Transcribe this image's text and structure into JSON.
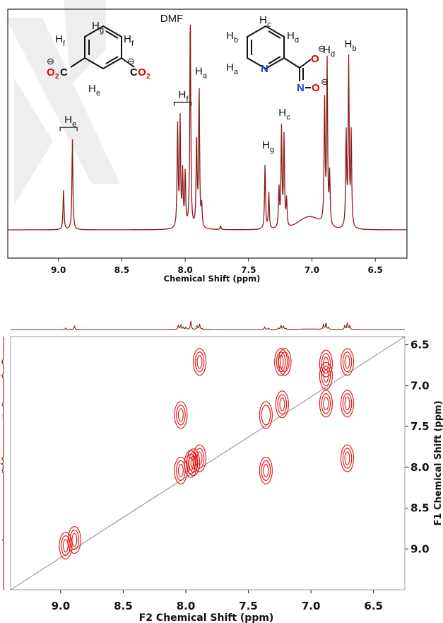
{
  "chart_data": [
    {
      "type": "line",
      "xlabel": "Chemical Shift (ppm)",
      "ylabel": "",
      "xlim": [
        9.4,
        6.25
      ],
      "x_ticks": [
        "9.0",
        "8.5",
        "8.0",
        "7.5",
        "7.0",
        "6.5"
      ],
      "line_color": "#8b1a1a",
      "solvent_label": "DMF",
      "solvent_peak_ppm": 7.96,
      "peaks": [
        {
          "ppm": 8.96,
          "height": 0.22
        },
        {
          "ppm": 8.89,
          "height": 0.5
        },
        {
          "ppm": 8.06,
          "height": 0.58
        },
        {
          "ppm": 8.04,
          "height": 0.6
        },
        {
          "ppm": 8.02,
          "height": 0.3
        },
        {
          "ppm": 8.0,
          "height": 0.3
        },
        {
          "ppm": 7.96,
          "height": 1.2
        },
        {
          "ppm": 7.91,
          "height": 0.5
        },
        {
          "ppm": 7.89,
          "height": 0.78
        },
        {
          "ppm": 7.87,
          "height": 0.12
        },
        {
          "ppm": 7.72,
          "height": 0.02
        },
        {
          "ppm": 7.37,
          "height": 0.36
        },
        {
          "ppm": 7.34,
          "height": 0.2
        },
        {
          "ppm": 7.26,
          "height": 0.22
        },
        {
          "ppm": 7.24,
          "height": 0.55
        },
        {
          "ppm": 7.22,
          "height": 0.5
        },
        {
          "ppm": 7.2,
          "height": 0.15
        },
        {
          "ppm": 6.9,
          "height": 0.68
        },
        {
          "ppm": 6.88,
          "height": 0.9
        },
        {
          "ppm": 6.86,
          "height": 0.28
        },
        {
          "ppm": 6.73,
          "height": 0.52
        },
        {
          "ppm": 6.71,
          "height": 0.92
        },
        {
          "ppm": 6.69,
          "height": 0.52
        }
      ],
      "broad_peak": {
        "ppm": 7.02,
        "height": 0.07,
        "width": 0.12
      },
      "annotations": [
        {
          "text": "H",
          "sub": "e",
          "ppm": 8.92,
          "level": 0.56,
          "bracket": true
        },
        {
          "text": "H",
          "sub": "f",
          "ppm": 8.02,
          "level": 0.7,
          "bracket": true
        },
        {
          "text": "H",
          "sub": "a",
          "ppm": 7.89,
          "level": 0.83,
          "bracket": false
        },
        {
          "text": "H",
          "sub": "g",
          "ppm": 7.36,
          "level": 0.42,
          "bracket": false
        },
        {
          "text": "H",
          "sub": "c",
          "ppm": 7.23,
          "level": 0.6,
          "bracket": false
        },
        {
          "text": "H",
          "sub": "d",
          "ppm": 6.88,
          "level": 0.95,
          "bracket": false
        },
        {
          "text": "H",
          "sub": "b",
          "ppm": 6.71,
          "level": 0.98,
          "bracket": false
        }
      ]
    },
    {
      "type": "heatmap",
      "xlabel": "F2 Chemical Shift (ppm)",
      "ylabel": "F1 Chemical Shift (ppm)",
      "xlim": [
        9.4,
        6.25
      ],
      "ylim": [
        6.4,
        9.5
      ],
      "x_ticks": [
        "9.0",
        "8.5",
        "8.0",
        "7.5",
        "7.0",
        "6.5"
      ],
      "y_ticks": [
        "6.5",
        "7.0",
        "7.5",
        "8.0",
        "8.5",
        "9.0"
      ],
      "contour_color": "#e01010",
      "diagonal": true,
      "cross_peaks": [
        {
          "f2": 7.89,
          "f1": 6.71,
          "rings": 3
        },
        {
          "f2": 7.24,
          "f1": 6.71,
          "rings": 3
        },
        {
          "f2": 7.21,
          "f1": 6.71,
          "rings": 2
        },
        {
          "f2": 6.88,
          "f1": 6.73,
          "rings": 3
        },
        {
          "f2": 6.71,
          "f1": 6.71,
          "rings": 3
        },
        {
          "f2": 6.88,
          "f1": 6.88,
          "rings": 3
        },
        {
          "f2": 8.04,
          "f1": 7.36,
          "rings": 3
        },
        {
          "f2": 7.23,
          "f1": 7.23,
          "rings": 3
        },
        {
          "f2": 6.88,
          "f1": 7.22,
          "rings": 3
        },
        {
          "f2": 6.71,
          "f1": 7.22,
          "rings": 3
        },
        {
          "f2": 7.36,
          "f1": 7.36,
          "rings": 2
        },
        {
          "f2": 8.04,
          "f1": 8.04,
          "rings": 3
        },
        {
          "f2": 7.96,
          "f1": 7.96,
          "rings": 3
        },
        {
          "f2": 7.94,
          "f1": 7.94,
          "rings": 3
        },
        {
          "f2": 7.89,
          "f1": 7.89,
          "rings": 3
        },
        {
          "f2": 7.36,
          "f1": 8.04,
          "rings": 3
        },
        {
          "f2": 6.71,
          "f1": 7.89,
          "rings": 3
        },
        {
          "f2": 8.96,
          "f1": 8.96,
          "rings": 3
        },
        {
          "f2": 8.89,
          "f1": 8.89,
          "rings": 3
        }
      ]
    }
  ],
  "structures": {
    "isophthalate": {
      "labels": [
        "H",
        "g",
        "H",
        "f",
        "H",
        "f",
        "H",
        "e"
      ],
      "left_group": "O",
      "left_group_sub": "2",
      "left_group_c": "C",
      "right_group_c": "C",
      "right_group": "O",
      "right_group_sub": "2",
      "charge": "⊖"
    },
    "picolinohydroxamate": {
      "labels": [
        "H",
        "c",
        "H",
        "b",
        "H",
        "d",
        "H",
        "a"
      ],
      "ring_n": "N",
      "oxime_n": "N",
      "o_top": "O",
      "o_bottom": "O",
      "charge": "⊖"
    }
  }
}
